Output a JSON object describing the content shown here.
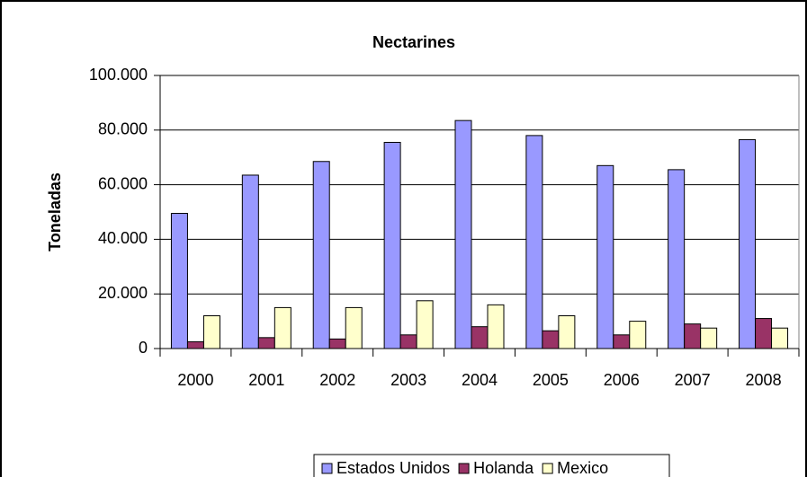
{
  "chart_data": {
    "type": "bar",
    "title": "Nectarines",
    "y_label": "Toneladas",
    "categories": [
      "2000",
      "2001",
      "2002",
      "2003",
      "2004",
      "2005",
      "2006",
      "2007",
      "2008"
    ],
    "series": [
      {
        "name": "Estados Unidos",
        "color": "#9999ff",
        "values": [
          49500,
          63500,
          68500,
          75500,
          83500,
          78000,
          67000,
          65500,
          76500
        ]
      },
      {
        "name": "Holanda",
        "color": "#993366",
        "values": [
          2500,
          4000,
          3500,
          5000,
          8000,
          6500,
          5000,
          9000,
          11000
        ]
      },
      {
        "name": "Mexico",
        "color": "#ffffcc",
        "values": [
          12000,
          15000,
          15000,
          17500,
          16000,
          12000,
          10000,
          7500,
          7500
        ]
      }
    ],
    "ylim": [
      0,
      100000
    ],
    "yticks": [
      0,
      {
        "value": 20000,
        "label": "20.000"
      },
      {
        "value": 40000,
        "label": "40.000"
      },
      {
        "value": 60000,
        "label": "60.000"
      },
      {
        "value": 80000,
        "label": "80.000"
      },
      {
        "value": 100000,
        "label": "100.000"
      }
    ],
    "grid": true,
    "legend": "bottom"
  }
}
